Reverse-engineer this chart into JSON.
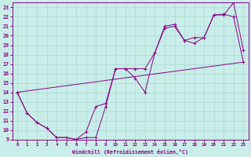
{
  "xlabel": "Windchill (Refroidissement éolien,°C)",
  "xlim": [
    -0.5,
    23.5
  ],
  "ylim": [
    9,
    23.5
  ],
  "xticks": [
    0,
    1,
    2,
    3,
    4,
    5,
    6,
    7,
    8,
    9,
    10,
    11,
    12,
    13,
    14,
    15,
    16,
    17,
    18,
    19,
    20,
    21,
    22,
    23
  ],
  "yticks": [
    9,
    10,
    11,
    12,
    13,
    14,
    15,
    16,
    17,
    18,
    19,
    20,
    21,
    22,
    23
  ],
  "bg_color": "#c9ede8",
  "line_color": "#880088",
  "grid_color": "#a8d8d4",
  "line1_x": [
    0,
    1,
    2,
    3,
    4,
    5,
    6,
    7,
    8,
    9,
    10,
    11,
    12,
    13,
    14,
    15,
    16,
    17,
    18,
    19,
    20,
    21,
    22,
    23
  ],
  "line1_y": [
    14.0,
    11.8,
    10.8,
    10.2,
    9.2,
    9.2,
    9.0,
    9.2,
    9.2,
    12.5,
    16.5,
    16.5,
    15.5,
    14.0,
    18.2,
    20.8,
    21.0,
    19.5,
    19.2,
    19.8,
    22.2,
    22.2,
    23.5,
    18.5
  ],
  "line2_x": [
    0,
    1,
    2,
    3,
    4,
    5,
    6,
    7,
    8,
    9,
    10,
    11,
    12,
    13,
    14,
    15,
    16,
    17,
    18,
    19,
    20,
    21,
    22,
    23
  ],
  "line2_y": [
    14.0,
    11.8,
    10.8,
    10.2,
    9.2,
    9.2,
    9.0,
    9.8,
    12.5,
    12.8,
    16.5,
    16.5,
    16.5,
    16.5,
    18.2,
    21.0,
    21.2,
    19.5,
    19.8,
    19.8,
    22.2,
    22.3,
    22.0,
    17.2
  ],
  "line3_x": [
    0,
    23
  ],
  "line3_y": [
    14.0,
    17.2
  ]
}
